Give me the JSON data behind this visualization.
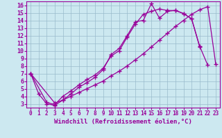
{
  "xlabel": "Windchill (Refroidissement éolien,°C)",
  "bg_color": "#cce8f0",
  "line_color": "#990099",
  "grid_color": "#99bbcc",
  "xlim": [
    -0.5,
    23.5
  ],
  "ylim": [
    2.5,
    16.5
  ],
  "xticks": [
    0,
    1,
    2,
    3,
    4,
    5,
    6,
    7,
    8,
    9,
    10,
    11,
    12,
    13,
    14,
    15,
    16,
    17,
    18,
    19,
    20,
    21,
    22,
    23
  ],
  "yticks": [
    3,
    4,
    5,
    6,
    7,
    8,
    9,
    10,
    11,
    12,
    13,
    14,
    15,
    16
  ],
  "line1_x": [
    0,
    1,
    2,
    3,
    4,
    5,
    6,
    7,
    8,
    9,
    10,
    11,
    12,
    13,
    14,
    15,
    16,
    17,
    18,
    19,
    20,
    21
  ],
  "line1_y": [
    7.0,
    4.3,
    3.0,
    2.8,
    3.5,
    4.3,
    5.2,
    5.8,
    6.5,
    7.5,
    9.5,
    10.3,
    12.0,
    13.8,
    14.0,
    16.2,
    14.3,
    15.2,
    15.3,
    14.9,
    14.2,
    10.5
  ],
  "line2_x": [
    0,
    2,
    3,
    4,
    5,
    6,
    7,
    8,
    9,
    10,
    11,
    12,
    13,
    14,
    15,
    16,
    17,
    18,
    19,
    20,
    21,
    22
  ],
  "line2_y": [
    7.0,
    3.2,
    2.9,
    4.0,
    4.7,
    5.5,
    6.2,
    6.8,
    7.7,
    9.3,
    10.0,
    11.8,
    13.5,
    14.8,
    15.2,
    15.5,
    15.3,
    15.3,
    14.9,
    14.2,
    10.6,
    8.1
  ],
  "line3_x": [
    0,
    3,
    4,
    5,
    6,
    7,
    8,
    9,
    10,
    11,
    12,
    13,
    14,
    15,
    16,
    17,
    18,
    19,
    20,
    21,
    22,
    23
  ],
  "line3_y": [
    7.0,
    3.1,
    3.5,
    4.0,
    4.5,
    5.0,
    5.5,
    6.0,
    6.7,
    7.3,
    8.0,
    8.8,
    9.6,
    10.5,
    11.4,
    12.3,
    13.2,
    14.0,
    14.8,
    15.4,
    15.8,
    8.2
  ],
  "marker": "+",
  "markersize": 4,
  "linewidth": 0.9,
  "tick_fontsize": 5.5,
  "label_fontsize": 6.5
}
